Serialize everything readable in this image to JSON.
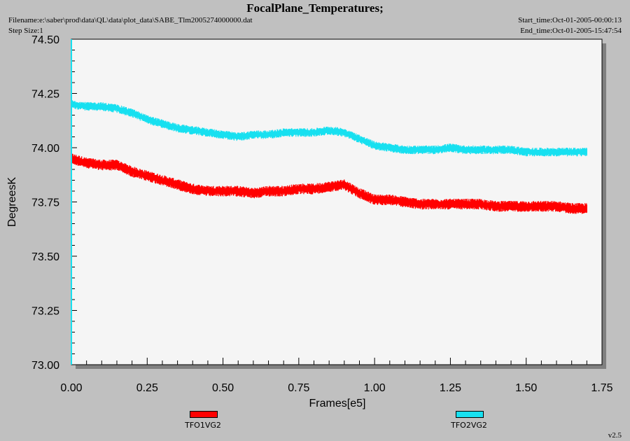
{
  "header": {
    "title": "FocalPlane_Temperatures;",
    "filename_label": "Filename:e:\\saber\\prod\\data\\QL\\data\\plot_data\\SABE_Tlm2005274000000.dat",
    "step_size_label": "Step Size:1",
    "start_time_label": "Start_time:Oct-01-2005-00:00:13",
    "end_time_label": "End_time:Oct-01-2005-15:47:54"
  },
  "footer": {
    "version": "v2.5"
  },
  "colors": {
    "plot_bg": "#f5f5f5",
    "series1": "#ff0000",
    "series2": "#17e0f0"
  },
  "chart_data": {
    "type": "line",
    "title": "FocalPlane_Temperatures;",
    "xlabel": "Frames[e5]",
    "ylabel": "DegreesK",
    "xlim": [
      0.0,
      1.75
    ],
    "ylim": [
      73.0,
      74.5
    ],
    "x_ticks": [
      "0.00",
      "0.25",
      "0.50",
      "0.75",
      "1.00",
      "1.25",
      "1.50",
      "1.75"
    ],
    "y_ticks": [
      "73.00",
      "73.25",
      "73.50",
      "73.75",
      "74.00",
      "74.25",
      "74.50"
    ],
    "grid": false,
    "legend_position": "bottom",
    "series": [
      {
        "name": "TFO1VG2",
        "color": "#ff0000",
        "x": [
          0.0,
          0.05,
          0.1,
          0.15,
          0.2,
          0.25,
          0.3,
          0.35,
          0.4,
          0.45,
          0.5,
          0.55,
          0.6,
          0.65,
          0.7,
          0.75,
          0.8,
          0.85,
          0.9,
          0.95,
          1.0,
          1.05,
          1.1,
          1.15,
          1.2,
          1.25,
          1.3,
          1.35,
          1.4,
          1.45,
          1.5,
          1.55,
          1.6,
          1.65,
          1.7
        ],
        "y": [
          73.95,
          73.93,
          73.92,
          73.92,
          73.89,
          73.87,
          73.85,
          73.83,
          73.81,
          73.8,
          73.8,
          73.8,
          73.79,
          73.8,
          73.8,
          73.81,
          73.81,
          73.82,
          73.83,
          73.79,
          73.76,
          73.76,
          73.75,
          73.74,
          73.74,
          73.74,
          73.74,
          73.74,
          73.73,
          73.73,
          73.73,
          73.73,
          73.73,
          73.72,
          73.72
        ],
        "noise_band": 0.05
      },
      {
        "name": "TFO2VG2",
        "color": "#17e0f0",
        "x": [
          0.0,
          0.05,
          0.1,
          0.15,
          0.2,
          0.25,
          0.3,
          0.35,
          0.4,
          0.45,
          0.5,
          0.55,
          0.6,
          0.65,
          0.7,
          0.75,
          0.8,
          0.85,
          0.9,
          0.95,
          1.0,
          1.05,
          1.1,
          1.15,
          1.2,
          1.25,
          1.3,
          1.35,
          1.4,
          1.45,
          1.5,
          1.55,
          1.6,
          1.65,
          1.7
        ],
        "y": [
          74.2,
          74.19,
          74.19,
          74.18,
          74.16,
          74.13,
          74.11,
          74.09,
          74.08,
          74.07,
          74.06,
          74.05,
          74.06,
          74.06,
          74.07,
          74.07,
          74.07,
          74.08,
          74.07,
          74.04,
          74.01,
          74.0,
          73.99,
          73.99,
          73.99,
          74.0,
          73.99,
          73.99,
          73.99,
          73.99,
          73.98,
          73.98,
          73.98,
          73.98,
          73.98
        ],
        "noise_band": 0.04
      }
    ]
  }
}
